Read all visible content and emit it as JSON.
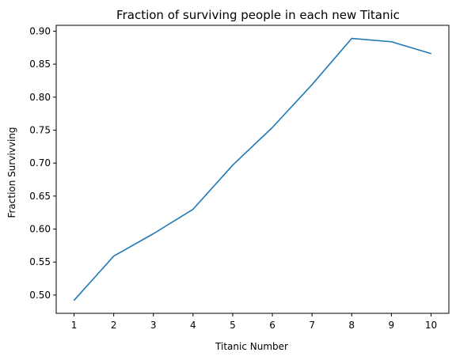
{
  "chart_data": {
    "type": "line",
    "title": "Fraction of surviving people in each new Titanic",
    "xlabel": "Titanic Number",
    "ylabel": "Fraction Survivving",
    "x": [
      1,
      2,
      3,
      4,
      5,
      6,
      7,
      8,
      9,
      10
    ],
    "series": [
      {
        "values": [
          0.492,
          0.559,
          0.593,
          0.63,
          0.697,
          0.754,
          0.819,
          0.889,
          0.884,
          0.866
        ],
        "color": "#1f77b4"
      }
    ],
    "xlim": [
      0.55,
      10.45
    ],
    "ylim": [
      0.4723,
      0.9089
    ],
    "xticks": [
      "1",
      "2",
      "3",
      "4",
      "5",
      "6",
      "7",
      "8",
      "9",
      "10"
    ],
    "yticks": [
      "0.50",
      "0.55",
      "0.60",
      "0.65",
      "0.70",
      "0.75",
      "0.80",
      "0.85",
      "0.90"
    ],
    "grid": false,
    "legend": "none"
  }
}
